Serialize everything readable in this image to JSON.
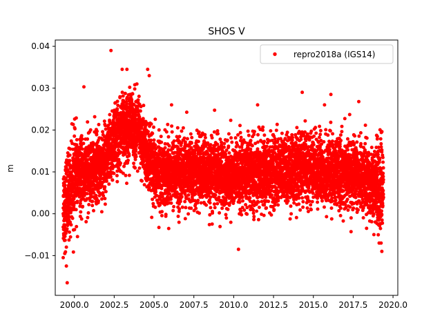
{
  "chart_data": {
    "type": "scatter",
    "title": "SHOS V",
    "xlabel": "",
    "ylabel": "m",
    "xlim": [
      1998.8,
      2020.3
    ],
    "ylim": [
      -0.0195,
      0.0415
    ],
    "x_ticks": [
      2000.0,
      2002.5,
      2005.0,
      2007.5,
      2010.0,
      2012.5,
      2015.0,
      2017.5,
      2020.0
    ],
    "x_tick_labels": [
      "2000.0",
      "2002.5",
      "2005.0",
      "2007.5",
      "2010.0",
      "2012.5",
      "2015.0",
      "2017.5",
      "2020.0"
    ],
    "y_ticks": [
      -0.01,
      0.0,
      0.01,
      0.02,
      0.03,
      0.04
    ],
    "y_tick_labels": [
      "−0.01",
      "0.00",
      "0.01",
      "0.02",
      "0.03",
      "0.04"
    ],
    "grid": false,
    "legend": {
      "placement": "top-right"
    },
    "series": [
      {
        "name": "repro2018a (IGS14)",
        "color": "#ff0000",
        "marker": "circle",
        "x_range": [
          1999.3,
          2019.4
        ],
        "trend": [
          [
            1999.3,
            0.002
          ],
          [
            1999.6,
            0.004
          ],
          [
            2000.0,
            0.009
          ],
          [
            2000.5,
            0.009
          ],
          [
            2001.0,
            0.01
          ],
          [
            2001.5,
            0.011
          ],
          [
            2002.0,
            0.013
          ],
          [
            2002.5,
            0.017
          ],
          [
            2003.0,
            0.02
          ],
          [
            2003.5,
            0.021
          ],
          [
            2004.0,
            0.02
          ],
          [
            2004.5,
            0.014
          ],
          [
            2005.0,
            0.01
          ],
          [
            2006.0,
            0.01
          ],
          [
            2008.0,
            0.01
          ],
          [
            2010.0,
            0.009
          ],
          [
            2012.5,
            0.01
          ],
          [
            2014.5,
            0.011
          ],
          [
            2016.0,
            0.01
          ],
          [
            2018.0,
            0.009
          ],
          [
            2019.4,
            0.006
          ]
        ],
        "scatter_std": 0.004,
        "points": [
          [
            1999.55,
            -0.0165
          ],
          [
            1999.5,
            -0.0125
          ],
          [
            1999.3,
            -0.0105
          ],
          [
            1999.4,
            -0.0095
          ],
          [
            2002.3,
            0.039
          ],
          [
            2003.0,
            0.0345
          ],
          [
            2003.3,
            0.0345
          ],
          [
            2004.6,
            0.0345
          ],
          [
            2004.7,
            0.033
          ],
          [
            2000.6,
            0.0303
          ],
          [
            2014.3,
            0.029
          ],
          [
            2016.1,
            0.0285
          ],
          [
            2017.85,
            0.0268
          ],
          [
            2010.3,
            -0.0085
          ],
          [
            2006.1,
            0.026
          ],
          [
            2011.5,
            0.026
          ],
          [
            2015.7,
            0.026
          ],
          [
            2019.3,
            -0.009
          ],
          [
            2019.25,
            -0.007
          ],
          [
            2018.8,
            -0.005
          ]
        ]
      }
    ]
  }
}
